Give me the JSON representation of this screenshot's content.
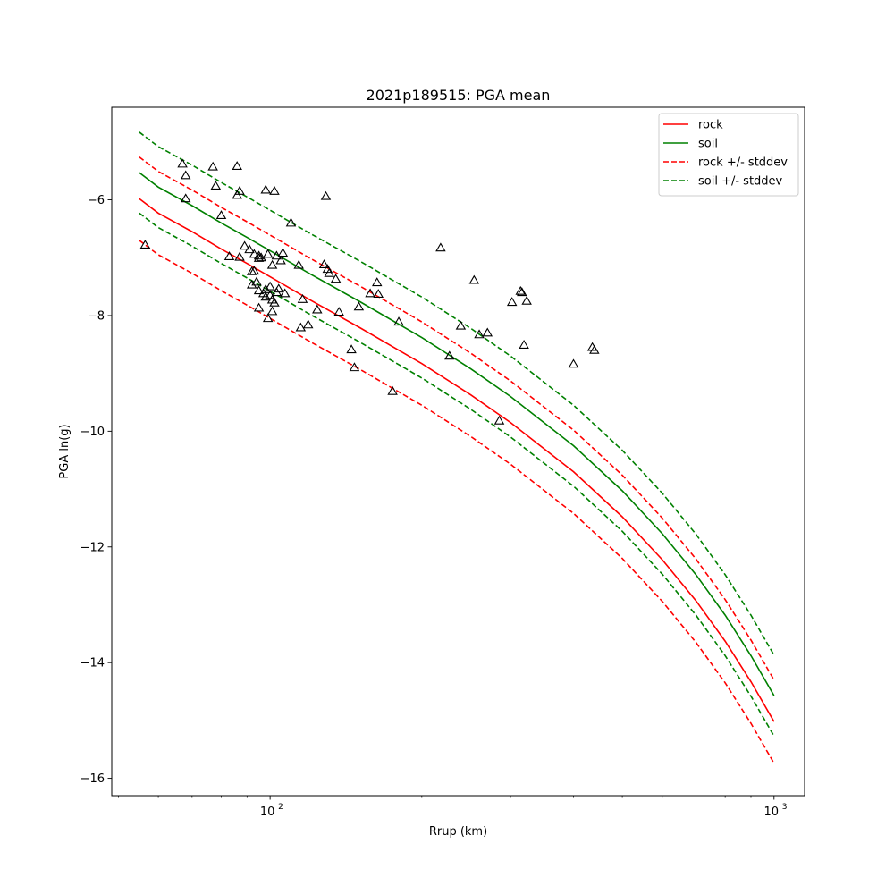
{
  "chart_data": {
    "type": "scatter",
    "title": "2021p189515: PGA mean",
    "xlabel": "Rrup (km)",
    "ylabel": "PGA ln(g)",
    "xscale": "log",
    "xlim": [
      48.5,
      1150
    ],
    "ylim": [
      -16.3,
      -4.4
    ],
    "xticks": [
      {
        "value": 100,
        "base": "10",
        "exp": "2"
      },
      {
        "value": 1000,
        "base": "10",
        "exp": "3"
      }
    ],
    "yticks": [
      {
        "value": -16,
        "label": "−16"
      },
      {
        "value": -14,
        "label": "−14"
      },
      {
        "value": -12,
        "label": "−12"
      },
      {
        "value": -10,
        "label": "−10"
      },
      {
        "value": -8,
        "label": "−8"
      },
      {
        "value": -6,
        "label": "−6"
      }
    ],
    "legend_position": "top-right",
    "curve_x": [
      55,
      60,
      70,
      80,
      90,
      100,
      120,
      150,
      200,
      250,
      300,
      400,
      500,
      600,
      700,
      800,
      900,
      1000
    ],
    "series": [
      {
        "name": "rock",
        "style": "solid",
        "color": "#ff0000",
        "y": [
          -5.98,
          -6.23,
          -6.55,
          -6.85,
          -7.1,
          -7.33,
          -7.73,
          -8.2,
          -8.83,
          -9.37,
          -9.85,
          -10.7,
          -11.48,
          -12.22,
          -12.93,
          -13.63,
          -14.33,
          -15.02
        ]
      },
      {
        "name": "soil",
        "style": "solid",
        "color": "#008000",
        "y": [
          -5.53,
          -5.78,
          -6.1,
          -6.4,
          -6.65,
          -6.88,
          -7.28,
          -7.75,
          -8.38,
          -8.92,
          -9.4,
          -10.25,
          -11.03,
          -11.77,
          -12.48,
          -13.18,
          -13.88,
          -14.57
        ]
      },
      {
        "name": "rock +/- stddev",
        "style": "dashed",
        "color": "#ff0000",
        "y": [
          -5.26,
          -5.51,
          -5.83,
          -6.13,
          -6.38,
          -6.61,
          -7.01,
          -7.48,
          -8.11,
          -8.65,
          -9.13,
          -9.98,
          -10.76,
          -11.5,
          -12.21,
          -12.91,
          -13.61,
          -14.3
        ]
      },
      {
        "name": "",
        "style": "dashed",
        "color": "#ff0000",
        "y": [
          -6.7,
          -6.95,
          -7.27,
          -7.57,
          -7.82,
          -8.05,
          -8.45,
          -8.92,
          -9.55,
          -10.09,
          -10.57,
          -11.42,
          -12.2,
          -12.94,
          -13.65,
          -14.35,
          -15.05,
          -15.74
        ]
      },
      {
        "name": "soil +/- stddev",
        "style": "dashed",
        "color": "#008000",
        "y": [
          -4.83,
          -5.08,
          -5.4,
          -5.7,
          -5.95,
          -6.18,
          -6.58,
          -7.05,
          -7.68,
          -8.22,
          -8.7,
          -9.55,
          -10.33,
          -11.07,
          -11.78,
          -12.48,
          -13.18,
          -13.87
        ]
      },
      {
        "name": "",
        "style": "dashed",
        "color": "#008000",
        "y": [
          -6.23,
          -6.48,
          -6.8,
          -7.1,
          -7.35,
          -7.58,
          -7.98,
          -8.45,
          -9.08,
          -9.62,
          -10.1,
          -10.95,
          -11.73,
          -12.47,
          -13.18,
          -13.88,
          -14.58,
          -15.27
        ]
      }
    ],
    "observations": [
      [
        56.5,
        -6.78
      ],
      [
        67,
        -5.38
      ],
      [
        68,
        -5.58
      ],
      [
        68,
        -5.98
      ],
      [
        77,
        -5.43
      ],
      [
        78,
        -5.76
      ],
      [
        80,
        -6.27
      ],
      [
        83,
        -6.98
      ],
      [
        86,
        -5.42
      ],
      [
        86,
        -5.92
      ],
      [
        87,
        -5.85
      ],
      [
        87,
        -6.99
      ],
      [
        89,
        -6.8
      ],
      [
        91,
        -6.86
      ],
      [
        92,
        -7.47
      ],
      [
        92,
        -7.24
      ],
      [
        93,
        -6.94
      ],
      [
        93,
        -7.23
      ],
      [
        94,
        -7.42
      ],
      [
        95,
        -6.97
      ],
      [
        95,
        -7.01
      ],
      [
        95,
        -7.57
      ],
      [
        95,
        -7.87
      ],
      [
        96,
        -7
      ],
      [
        97,
        -7.62
      ],
      [
        98,
        -5.83
      ],
      [
        98,
        -7.55
      ],
      [
        98,
        -7.68
      ],
      [
        99,
        -6.94
      ],
      [
        99,
        -8.05
      ],
      [
        100,
        -7.5
      ],
      [
        100,
        -7.65
      ],
      [
        101,
        -7.13
      ],
      [
        101,
        -7.93
      ],
      [
        101,
        -7.73
      ],
      [
        102,
        -5.85
      ],
      [
        102,
        -7.78
      ],
      [
        103,
        -6.97
      ],
      [
        103,
        -7.6
      ],
      [
        104,
        -7.54
      ],
      [
        105,
        -7.05
      ],
      [
        106,
        -6.92
      ],
      [
        107,
        -7.62
      ],
      [
        110,
        -6.4
      ],
      [
        114,
        -7.13
      ],
      [
        115,
        -8.21
      ],
      [
        116,
        -7.72
      ],
      [
        119,
        -8.16
      ],
      [
        124,
        -7.9
      ],
      [
        128,
        -7.12
      ],
      [
        129,
        -5.94
      ],
      [
        130,
        -7.2
      ],
      [
        131,
        -7.27
      ],
      [
        135,
        -7.37
      ],
      [
        137,
        -7.94
      ],
      [
        145,
        -8.59
      ],
      [
        147,
        -8.9
      ],
      [
        150,
        -7.85
      ],
      [
        158,
        -7.62
      ],
      [
        163,
        -7.43
      ],
      [
        164,
        -7.63
      ],
      [
        175,
        -9.31
      ],
      [
        180,
        -8.11
      ],
      [
        218,
        -6.83
      ],
      [
        227,
        -8.7
      ],
      [
        239,
        -8.18
      ],
      [
        254,
        -7.39
      ],
      [
        260,
        -8.33
      ],
      [
        270,
        -8.3
      ],
      [
        285,
        -9.82
      ],
      [
        302,
        -7.77
      ],
      [
        314,
        -7.58
      ],
      [
        316,
        -7.6
      ],
      [
        319,
        -8.51
      ],
      [
        323,
        -7.75
      ],
      [
        400,
        -8.84
      ],
      [
        436,
        -8.55
      ],
      [
        440,
        -8.6
      ]
    ]
  }
}
